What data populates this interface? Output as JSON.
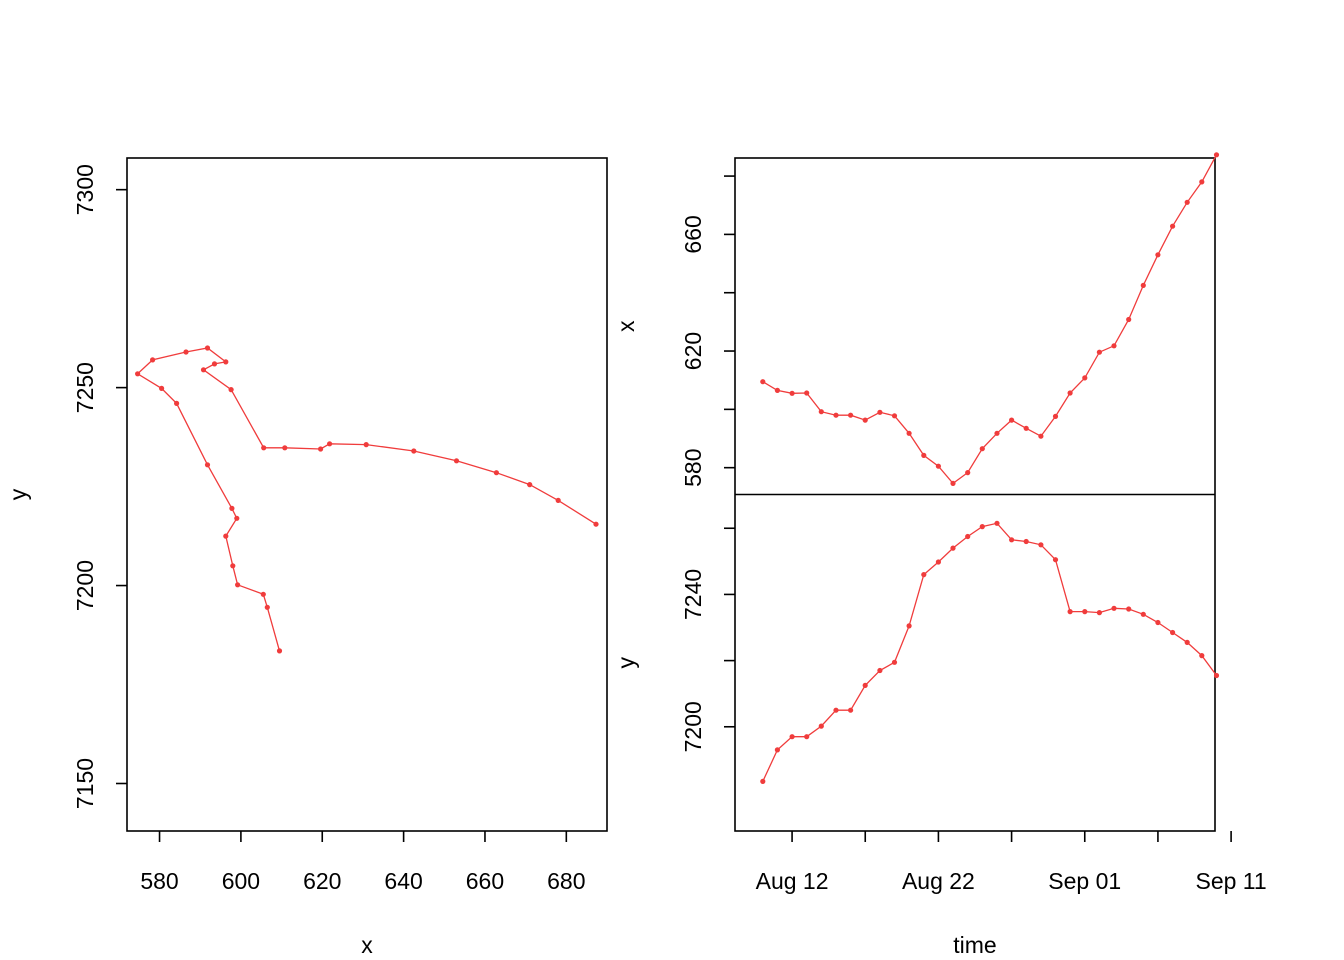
{
  "colors": {
    "series": "#f03c3c",
    "axis": "#000000",
    "background": "#ffffff"
  },
  "chart_data": [
    {
      "id": "xy",
      "type": "line",
      "xlabel": "x",
      "ylabel": "y",
      "xlim": [
        572,
        690
      ],
      "ylim": [
        7138,
        7308
      ],
      "xticks": [
        580,
        600,
        620,
        640,
        660,
        680
      ],
      "yticks": [
        7150,
        7200,
        7250,
        7300
      ],
      "x": [
        609.5,
        606.5,
        605.5,
        599.2,
        598.0,
        596.3,
        599.0,
        597.8,
        591.8,
        584.2,
        580.5,
        574.6,
        578.3,
        586.5,
        591.8,
        596.3,
        593.5,
        590.8,
        597.6,
        605.6,
        610.8,
        619.6,
        621.8,
        630.8,
        642.5,
        653.0,
        662.8,
        671.0,
        678.0,
        687.3
      ],
      "y": [
        7183.5,
        7194.5,
        7197.8,
        7200.2,
        7205.0,
        7212.5,
        7217.0,
        7219.5,
        7230.5,
        7246.0,
        7249.8,
        7253.5,
        7257.0,
        7259.0,
        7260.0,
        7256.5,
        7256.0,
        7254.5,
        7249.5,
        7234.8,
        7234.8,
        7234.5,
        7235.8,
        7235.6,
        7234.0,
        7231.5,
        7228.5,
        7225.5,
        7221.5,
        7215.5
      ]
    },
    {
      "id": "time-x",
      "type": "line",
      "ylabel": "x",
      "xlim": [
        8.1,
        40.9
      ],
      "ylim": [
        570.8,
        686.2
      ],
      "yticks": [
        580,
        620,
        660
      ],
      "y": [
        609.5,
        606.5,
        605.5,
        605.6,
        599.2,
        598.0,
        598.0,
        596.3,
        599.0,
        597.8,
        591.8,
        584.2,
        580.5,
        574.6,
        578.3,
        586.5,
        591.8,
        596.3,
        593.5,
        590.8,
        597.6,
        605.6,
        610.8,
        619.6,
        621.8,
        630.8,
        642.5,
        653.0,
        662.8,
        671.0,
        678.0,
        687.3
      ]
    },
    {
      "id": "time-y",
      "type": "line",
      "xlabel": "time",
      "ylabel": "y",
      "xlim": [
        8.1,
        40.9
      ],
      "ylim": [
        7168.5,
        7270.2
      ],
      "yticks": [
        7200,
        7240
      ],
      "y": [
        7183.5,
        7193.0,
        7197.0,
        7197.0,
        7200.2,
        7205.0,
        7205.0,
        7212.5,
        7217.0,
        7219.5,
        7230.5,
        7246.0,
        7249.8,
        7254.0,
        7257.5,
        7260.5,
        7261.5,
        7256.5,
        7256.0,
        7255.0,
        7250.5,
        7234.8,
        7234.8,
        7234.5,
        7235.8,
        7235.6,
        7234.0,
        7231.5,
        7228.5,
        7225.5,
        7221.5,
        7215.5
      ],
      "xticks": [
        {
          "value": 12,
          "label": "Aug 12"
        },
        {
          "value": 17,
          "label": ""
        },
        {
          "value": 22,
          "label": "Aug 22"
        },
        {
          "value": 27,
          "label": ""
        },
        {
          "value": 32,
          "label": "Sep 01"
        },
        {
          "value": 37,
          "label": ""
        },
        {
          "value": 42,
          "label": "Sep 11"
        }
      ]
    }
  ]
}
